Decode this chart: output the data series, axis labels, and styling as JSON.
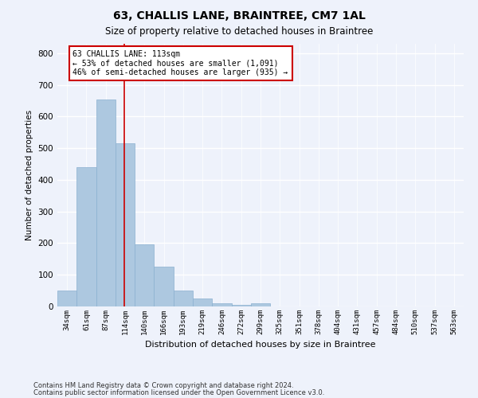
{
  "title": "63, CHALLIS LANE, BRAINTREE, CM7 1AL",
  "subtitle": "Size of property relative to detached houses in Braintree",
  "xlabel": "Distribution of detached houses by size in Braintree",
  "ylabel": "Number of detached properties",
  "categories": [
    "34sqm",
    "61sqm",
    "87sqm",
    "114sqm",
    "140sqm",
    "166sqm",
    "193sqm",
    "219sqm",
    "246sqm",
    "272sqm",
    "299sqm",
    "325sqm",
    "351sqm",
    "378sqm",
    "404sqm",
    "431sqm",
    "457sqm",
    "484sqm",
    "510sqm",
    "537sqm",
    "563sqm"
  ],
  "values": [
    50,
    440,
    655,
    515,
    195,
    125,
    50,
    25,
    10,
    5,
    10,
    0,
    0,
    0,
    0,
    0,
    0,
    0,
    0,
    0,
    0
  ],
  "bar_color": "#adc8e0",
  "bar_edge_color": "#8ab0d0",
  "property_line_color": "#cc0000",
  "annotation_text": "63 CHALLIS LANE: 113sqm\n← 53% of detached houses are smaller (1,091)\n46% of semi-detached houses are larger (935) →",
  "annotation_box_color": "#ffffff",
  "annotation_box_edge_color": "#cc0000",
  "ylim": [
    0,
    830
  ],
  "yticks": [
    0,
    100,
    200,
    300,
    400,
    500,
    600,
    700,
    800
  ],
  "background_color": "#eef2fb",
  "grid_color": "#ffffff",
  "footer_line1": "Contains HM Land Registry data © Crown copyright and database right 2024.",
  "footer_line2": "Contains public sector information licensed under the Open Government Licence v3.0."
}
